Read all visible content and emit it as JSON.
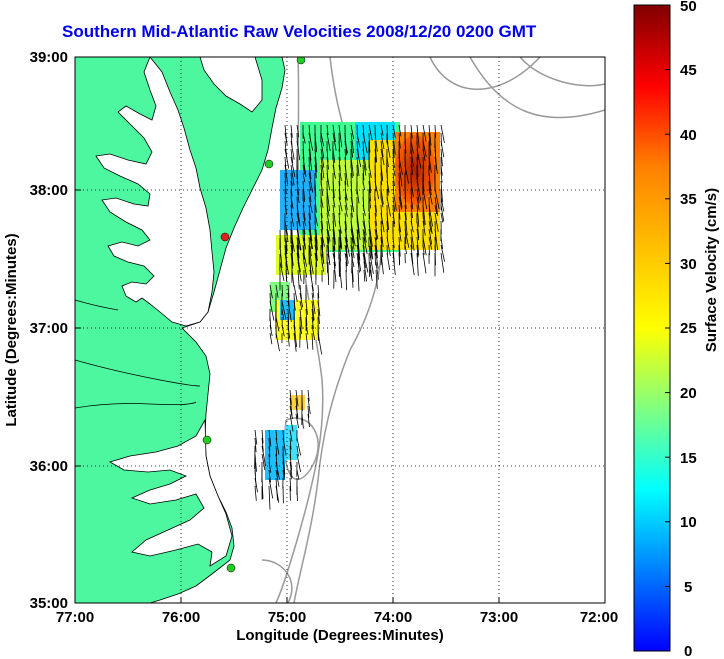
{
  "title": "Southern Mid-Atlantic Raw Velocities 2008/12/20 0200 GMT",
  "x_axis": {
    "label": "Longitude (Degrees:Minutes)",
    "ticks": [
      "77:00",
      "76:00",
      "75:00",
      "74:00",
      "73:00",
      "72:00"
    ]
  },
  "y_axis": {
    "label": "Latitude (Degrees:Minutes)",
    "ticks": [
      "39:00",
      "38:00",
      "37:00",
      "36:00",
      "35:00"
    ]
  },
  "colorbar": {
    "label": "Surface Velocity (cm/s)",
    "ticks": [
      "50",
      "45",
      "40",
      "35",
      "30",
      "25",
      "20",
      "15",
      "10",
      "5",
      "0"
    ],
    "min": 0,
    "max": 50
  },
  "colors": {
    "land": "#4cf7a0",
    "title": "#0000ee",
    "station_green": "#22cc22",
    "station_red": "#dd2222",
    "bathymetry": "#999999"
  },
  "map": {
    "lon_range": [
      -77,
      -72
    ],
    "lat_range": [
      35,
      39
    ],
    "grid": "dotted",
    "stations": [
      {
        "lon": -74.87,
        "lat": 39.0,
        "color": "green"
      },
      {
        "lon": -75.15,
        "lat": 38.2,
        "color": "green"
      },
      {
        "lon": -75.55,
        "lat": 37.7,
        "color": "red"
      },
      {
        "lon": -75.75,
        "lat": 36.2,
        "color": "green"
      },
      {
        "lon": -75.5,
        "lat": 35.25,
        "color": "green"
      }
    ]
  }
}
